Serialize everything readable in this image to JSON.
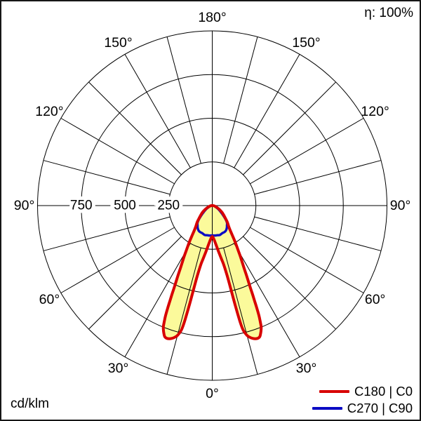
{
  "figure": {
    "eta_label": "η: 100%",
    "unit_label": "cd/klm",
    "background": "#ffffff",
    "border_color": "#161616"
  },
  "legend": {
    "items": [
      {
        "label": "C180 | C0",
        "color": "#d80000"
      },
      {
        "label": "C270 | C90",
        "color": "#0b0bc4"
      }
    ]
  },
  "chart_data": {
    "type": "polar",
    "subtype": "luminous_intensity_distribution",
    "unit": "cd/klm",
    "efficiency_label": "η: 100%",
    "fill_color": "#fbfa9b",
    "grid": {
      "line_color": "#000000",
      "max_value": 1000,
      "ring_values": [
        250,
        500,
        750,
        1000
      ],
      "ring_labels": [
        {
          "value": 250,
          "text": "250"
        },
        {
          "value": 500,
          "text": "500"
        },
        {
          "value": 750,
          "text": "750"
        }
      ],
      "spoke_step_deg": 15,
      "spoke_inner_value": 250
    },
    "angle_labels": [
      {
        "deg": 0,
        "text": "0°"
      },
      {
        "deg": 30,
        "text": "30°"
      },
      {
        "deg": 60,
        "text": "60°"
      },
      {
        "deg": 90,
        "text": "90°"
      },
      {
        "deg": 120,
        "text": "120°"
      },
      {
        "deg": 150,
        "text": "150°"
      },
      {
        "deg": 180,
        "text": "180°"
      }
    ],
    "series": [
      {
        "name": "C180 | C0",
        "color": "#d80000",
        "stroke_width": 4,
        "symmetric": true,
        "points_deg_cd_per_klm": [
          [
            0,
            177
          ],
          [
            2,
            186
          ],
          [
            4,
            205
          ],
          [
            6,
            233
          ],
          [
            8,
            270
          ],
          [
            10,
            315
          ],
          [
            11,
            345
          ],
          [
            12,
            410
          ],
          [
            12.5,
            480
          ],
          [
            13,
            590
          ],
          [
            13.5,
            690
          ],
          [
            14,
            737
          ],
          [
            15,
            769
          ],
          [
            16,
            785
          ],
          [
            17,
            795
          ],
          [
            18,
            801
          ],
          [
            19,
            803
          ],
          [
            20,
            797
          ],
          [
            21,
            776
          ],
          [
            21.5,
            763
          ],
          [
            22,
            747
          ],
          [
            22.5,
            717
          ],
          [
            23,
            684
          ],
          [
            23.5,
            640
          ],
          [
            24,
            592
          ],
          [
            24.5,
            551
          ],
          [
            25,
            510
          ],
          [
            26,
            452
          ],
          [
            27,
            400
          ],
          [
            28,
            362
          ],
          [
            29,
            330
          ],
          [
            30,
            298
          ],
          [
            32,
            250
          ],
          [
            34,
            206
          ],
          [
            36,
            174
          ],
          [
            38,
            154
          ],
          [
            40,
            141
          ],
          [
            42,
            130
          ],
          [
            44,
            117
          ],
          [
            46,
            105
          ],
          [
            48,
            95
          ],
          [
            50,
            87
          ],
          [
            52,
            79
          ],
          [
            55,
            69
          ],
          [
            58,
            58
          ],
          [
            61,
            48
          ],
          [
            64,
            39
          ],
          [
            67,
            31
          ],
          [
            70,
            25
          ],
          [
            73,
            20
          ],
          [
            76,
            16
          ],
          [
            79,
            13
          ],
          [
            82,
            10
          ],
          [
            85,
            8
          ],
          [
            88,
            6
          ],
          [
            91,
            4
          ],
          [
            95,
            2
          ],
          [
            100,
            1
          ],
          [
            110,
            0
          ],
          [
            135,
            0
          ],
          [
            180,
            0
          ]
        ]
      },
      {
        "name": "C270 | C90",
        "color": "#0b0bc4",
        "stroke_width": 3.4,
        "symmetric": true,
        "points_deg_cd_per_klm": [
          [
            0,
            171
          ],
          [
            5,
            172
          ],
          [
            10,
            172
          ],
          [
            14,
            174
          ],
          [
            17,
            171
          ],
          [
            20,
            168
          ],
          [
            24,
            167
          ],
          [
            28,
            164
          ],
          [
            31,
            158
          ],
          [
            34,
            150
          ],
          [
            37,
            140
          ],
          [
            40,
            132
          ],
          [
            43,
            117
          ],
          [
            46,
            97
          ],
          [
            50,
            75
          ],
          [
            54,
            57
          ],
          [
            58,
            45
          ],
          [
            62,
            33
          ],
          [
            66,
            24
          ],
          [
            70,
            18
          ],
          [
            75,
            13
          ],
          [
            80,
            9
          ],
          [
            85,
            6
          ],
          [
            90,
            4
          ],
          [
            95,
            2
          ],
          [
            100,
            1
          ],
          [
            110,
            0
          ],
          [
            140,
            0
          ],
          [
            180,
            0
          ]
        ]
      }
    ]
  }
}
